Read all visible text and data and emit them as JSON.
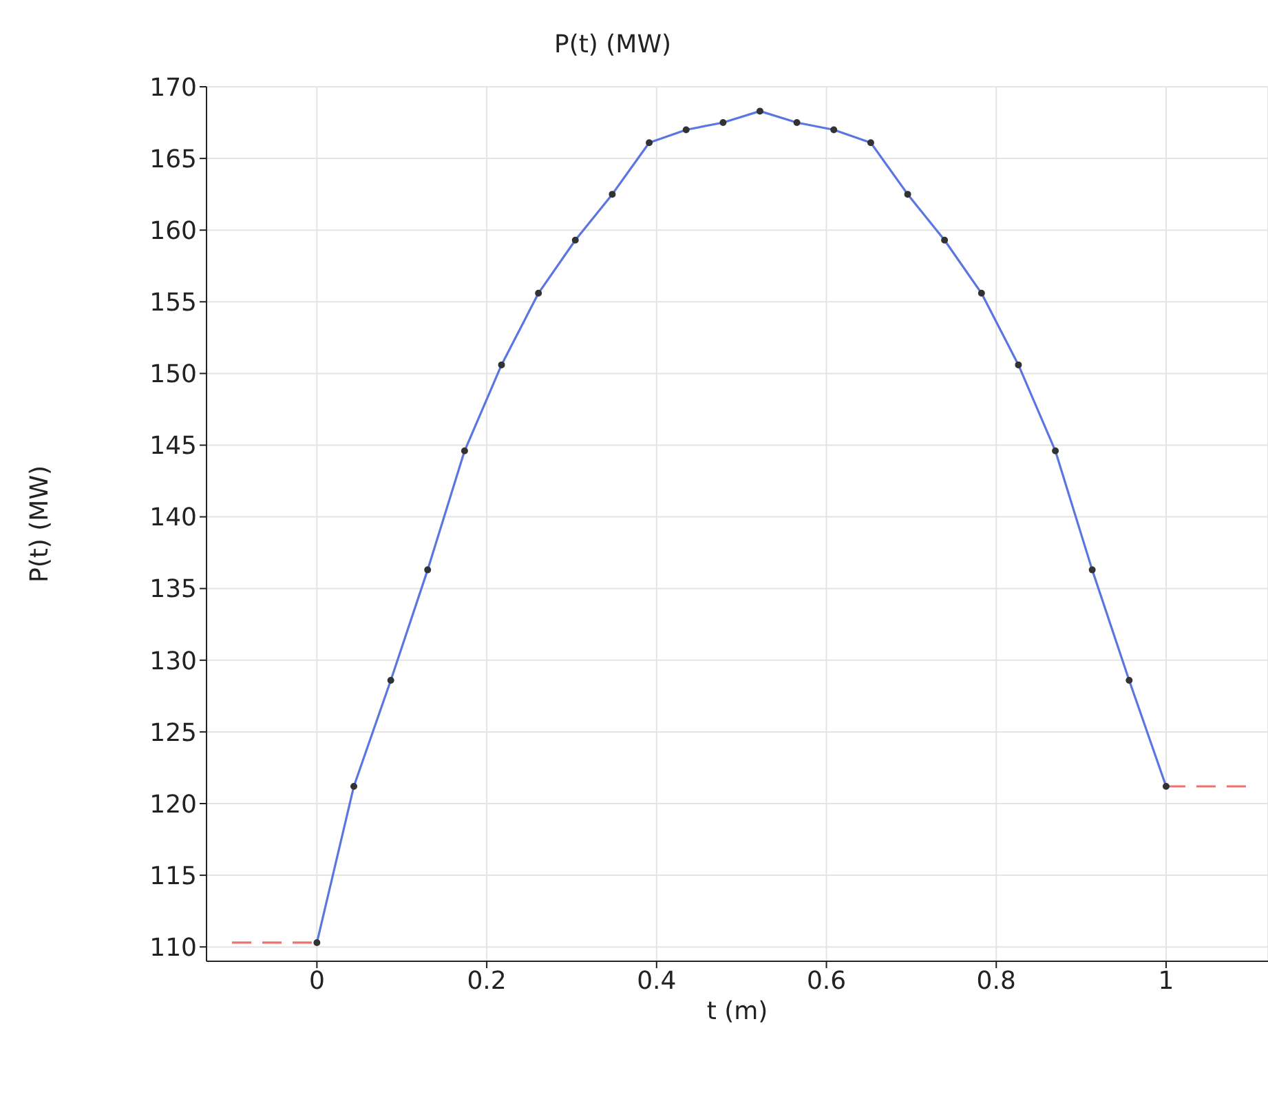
{
  "chart_data": {
    "type": "line",
    "title": "P(t) (MW)",
    "xlabel": "t (m)",
    "ylabel": "P(t) (MW)",
    "xlim": [
      -0.13,
      1.12
    ],
    "xticks": [
      0,
      0.2,
      0.4,
      0.6,
      0.8,
      1
    ],
    "ylim": [
      109,
      170
    ],
    "yticks": [
      110,
      115,
      120,
      125,
      130,
      135,
      140,
      145,
      150,
      155,
      160,
      165,
      170
    ],
    "grid": true,
    "series": [
      {
        "color": "#5b76e0",
        "marker": "circle",
        "line_style": "solid",
        "x": [
          0,
          0.0435,
          0.087,
          0.1304,
          0.1739,
          0.2174,
          0.2609,
          0.3043,
          0.3478,
          0.3913,
          0.4348,
          0.4783,
          0.5217,
          0.5652,
          0.6087,
          0.6522,
          0.6957,
          0.7391,
          0.7826,
          0.8261,
          0.8696,
          0.913,
          0.9565,
          1
        ],
        "values": [
          110.3,
          121.2,
          128.6,
          136.3,
          144.6,
          150.6,
          155.6,
          159.3,
          162.5,
          166.1,
          167.0,
          167.5,
          168.3,
          167.5,
          167.0,
          166.1,
          162.5,
          159.3,
          155.6,
          150.6,
          144.6,
          136.3,
          128.6,
          121.2
        ]
      },
      {
        "color": "#f07070",
        "marker": "none",
        "line_style": "dashed",
        "x": [
          -0.1,
          0
        ],
        "values": [
          110.3,
          110.3
        ]
      },
      {
        "color": "#f07070",
        "marker": "none",
        "line_style": "dashed",
        "x": [
          1,
          1.1
        ],
        "values": [
          121.2,
          121.2
        ]
      }
    ]
  }
}
